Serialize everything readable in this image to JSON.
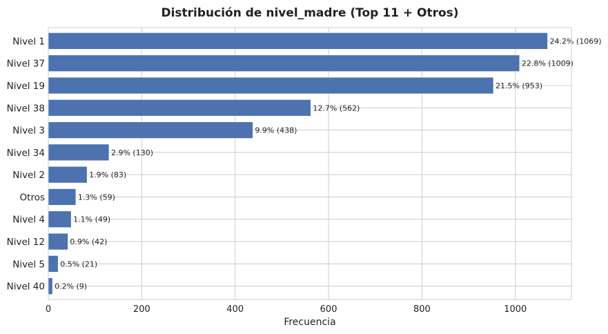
{
  "chart_data": {
    "type": "bar",
    "orientation": "horizontal",
    "title": "Distribución de nivel_madre (Top 11 + Otros)",
    "xlabel": "Frecuencia",
    "ylabel": "",
    "xlim": [
      0,
      1120
    ],
    "xticks": [
      "0",
      "200",
      "400",
      "600",
      "800",
      "1000"
    ],
    "grid": true,
    "bar_color": "#4c72b0",
    "categories": [
      "Nivel 1",
      "Nivel 37",
      "Nivel 19",
      "Nivel 38",
      "Nivel 3",
      "Nivel 34",
      "Nivel 2",
      "Otros",
      "Nivel 4",
      "Nivel 12",
      "Nivel 5",
      "Nivel 40"
    ],
    "values": [
      1069,
      1009,
      953,
      562,
      438,
      130,
      83,
      59,
      49,
      42,
      21,
      9
    ],
    "data_labels": [
      "24.2% (1069)",
      "22.8% (1009)",
      "21.5% (953)",
      "12.7% (562)",
      "9.9% (438)",
      "2.9% (130)",
      "1.9% (83)",
      "1.3% (59)",
      "1.1% (49)",
      "0.9% (42)",
      "0.5% (21)",
      "0.2% (9)"
    ]
  }
}
